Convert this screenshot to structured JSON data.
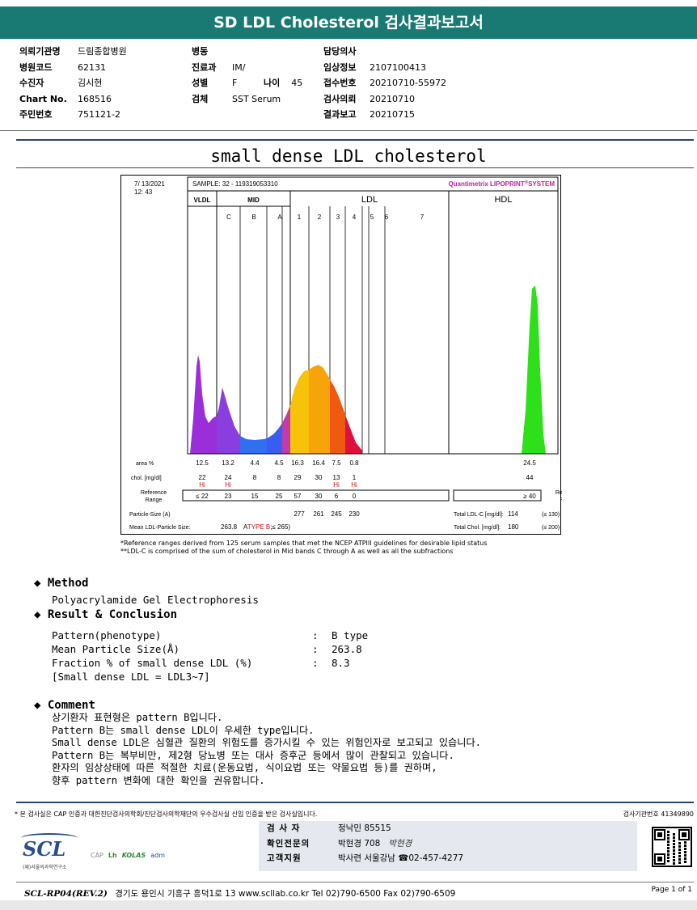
{
  "header": {
    "title": "SD LDL Cholesterol 검사결과보고서"
  },
  "patient_info": {
    "col1": [
      {
        "label": "의뢰기관명",
        "value": "드림종합병원"
      },
      {
        "label": "병원코드",
        "value": "62131"
      },
      {
        "label": "수진자",
        "value": "김시현"
      },
      {
        "label": "Chart No.",
        "value": "168516"
      },
      {
        "label": "주민번호",
        "value": "751121-2"
      }
    ],
    "col2": [
      {
        "label": "병동",
        "value": ""
      },
      {
        "label": "진료과",
        "value": "IM/"
      },
      {
        "label": "성별",
        "value": "F"
      },
      {
        "label": "검체",
        "value": "SST Serum"
      }
    ],
    "age": {
      "label": "나이",
      "value": "45"
    },
    "col3": [
      {
        "label": "담당의사",
        "value": ""
      },
      {
        "label": "임상정보",
        "value": "2107100413"
      },
      {
        "label": "접수번호",
        "value": "20210710-55972"
      },
      {
        "label": "검사의뢰",
        "value": "20210710"
      },
      {
        "label": "결과보고",
        "value": "20210715"
      }
    ]
  },
  "report_title": "small dense LDL cholesterol",
  "chart_data": {
    "type": "area",
    "date": "7/ 13/2021",
    "time": "12: 43",
    "sample": "SAMPLE:   32 - 119319053310",
    "system": "Quantimetrix LIPOPRINT",
    "system_mark": "®",
    "system_suffix": "SYSTEM",
    "groups": [
      "VLDL",
      "MID",
      "LDL",
      "HDL"
    ],
    "bands": [
      "C",
      "B",
      "A",
      "1",
      "2",
      "3",
      "4",
      "5",
      "6",
      "7"
    ],
    "area_label": "area %",
    "area_values": [
      "12.5",
      "13.2",
      "4.4",
      "4.5",
      "16.3",
      "16.4",
      "7.5",
      "0.8",
      "24.5"
    ],
    "chol_label": "chol. [mg/dl]",
    "chol_values": [
      "22",
      "24",
      "8",
      "8",
      "29",
      "30",
      "13",
      "1",
      "44"
    ],
    "chol_flags": [
      "Hi",
      "Hi",
      "",
      "",
      "",
      "",
      "Hi",
      "Hi",
      ""
    ],
    "ref_label": "Reference Range",
    "ref_values": [
      "≤ 22",
      "23",
      "15",
      "25",
      "57",
      "30",
      "6",
      "0"
    ],
    "hdl_ref": "≥ 40",
    "particle_label": "Particle-Size (A)",
    "particle_values": [
      "277",
      "261",
      "245",
      "230"
    ],
    "mean_label": "Mean LDL-Particle Size:",
    "mean_value": "263.8",
    "mean_type_prefix": "A",
    "mean_type": "TYPE B",
    "mean_type_suffix": ";≤ 265)",
    "total_ldl_label": "Total LDL-C [mg/dl]:",
    "total_ldl_value": "114",
    "total_ldl_ref": "(≤ 130)",
    "total_chol_label": "Total Chol. [mg/dl]:",
    "total_chol_value": "180",
    "total_chol_ref": "(≤ 200)"
  },
  "footnotes": [
    "*Reference ranges derived from 125 serum samples that met the NCEP ATPIII guidelines for desirable lipid status",
    "**LDL-C is comprised of the sum of cholesterol in Mid bands C through A as well as all the subfractions"
  ],
  "method": {
    "title": "Method",
    "text": "Polyacrylamide Gel Electrophoresis"
  },
  "result": {
    "title": "Result & Conclusion",
    "rows": [
      {
        "label": "Pattern(phenotype)",
        "value": "B type"
      },
      {
        "label": "Mean Particle Size(Å)",
        "value": "263.8"
      },
      {
        "label": "Fraction % of small dense LDL (%)",
        "value": "8.3"
      }
    ],
    "note": "[Small dense LDL = LDL3~7]",
    "colon": ":"
  },
  "comment": {
    "title": "Comment",
    "lines": [
      "상기환자 표현형은 pattern B입니다.",
      "Pattern B는 small dense LDL이 우세한 type입니다.",
      "Small dense LDL은 심혈관 질환의 위험도를 증가시킬 수 있는 위험인자로 보고되고 있습니다.",
      "Pattern B는 복부비만, 제2형 당뇨병 또는 대사 증후군 등에서 많이 관찰되고 있습니다.",
      "환자의 임상상태에 따른 적절한 치료(운동요법, 식이요법 또는 약물요법 등)를 권하며,",
      "향후 pattern 변화에 대한 확인을 권유합니다."
    ]
  },
  "footer": {
    "notice": "* 본 검사실은 CAP 인증과 대한진단검사의학회/진단검사의학재단의 우수검사실 신임 인증을 받은 검사실입니다.",
    "lab_code": "검사기관번호 41349890",
    "signers": [
      {
        "label": "검 사 자",
        "value": "정낙민 85515"
      },
      {
        "label": "확인전문의",
        "value": "박현경 708",
        "signature": "박현경"
      },
      {
        "label": "고객지원",
        "value": "박사련 서울강남 ☎02-457-4277"
      }
    ],
    "logo": "SCL",
    "logo_sub": "(재)서울의과학연구소",
    "cert_logos": [
      "CAP",
      "Lh",
      "KOLAS",
      "adm"
    ],
    "form_code": "SCL-RP04(REV.2)",
    "address": "경기도 용인시 기흥구 흥덕1로 13  www.scllab.co.kr  Tel 02)790-6500  Fax 02)790-6509",
    "page": "Page 1 of 1"
  },
  "colors": {
    "title_bar": "#187a72",
    "rule": "#28456e",
    "vldl": "#9a2ed8",
    "mid_c": "#8a3ee0",
    "mid_b": "#2f6ff0",
    "mid_a": "#3a5cf0",
    "ldl1": "#f6c20a",
    "ldl2": "#f6a40a",
    "ldl3": "#f05a10",
    "ldl4": "#e0103c",
    "hdl": "#2ee01a",
    "hi": "#d0121a",
    "system": "#c0229a"
  }
}
